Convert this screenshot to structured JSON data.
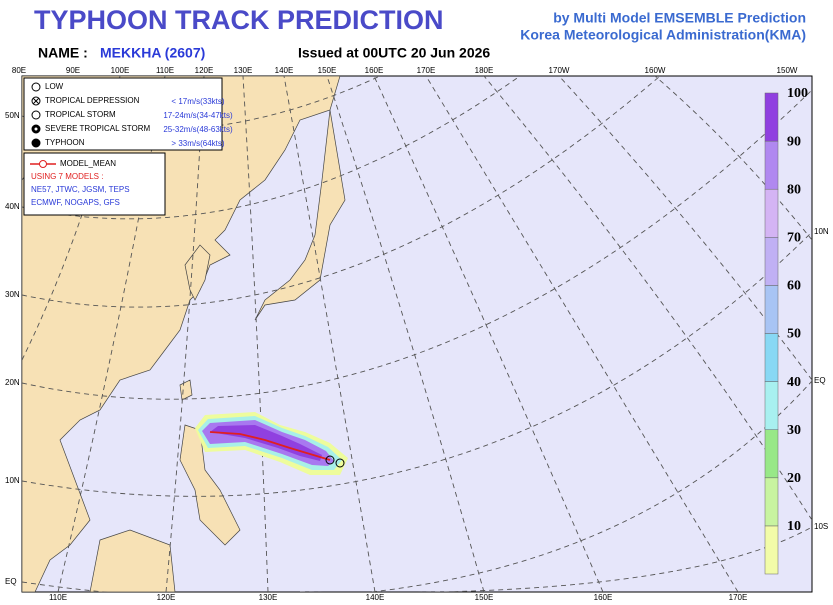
{
  "header": {
    "title": "TYPHOON  TRACK  PREDICTION",
    "subtitle": "by Multi Model EMSEMBLE Prediction",
    "agency": "Korea Meteorological Administration(KMA)",
    "name_label": "NAME :",
    "name": "MEKKHA (2607)",
    "issued": "Issued at  00UTC 20 Jun 2026"
  },
  "map": {
    "top_labels": [
      "80E",
      "90E",
      "100E",
      "110E",
      "120E",
      "130E",
      "140E",
      "150E",
      "160E",
      "170E",
      "180E",
      "170W",
      "160W",
      "150W"
    ],
    "bottom_labels": [
      "110E",
      "120E",
      "130E",
      "140E",
      "150E",
      "160E",
      "170E"
    ],
    "left_labels": [
      "50N",
      "40N",
      "30N",
      "20N",
      "10N",
      "EQ"
    ],
    "right_labels": [
      "10N",
      "EQ",
      "10S"
    ]
  },
  "legend": {
    "items": [
      {
        "label": "LOW"
      },
      {
        "label": "TROPICAL DEPRESSION",
        "speed": "< 17m/s(33kts)"
      },
      {
        "label": "TROPICAL STORM",
        "speed": "17-24m/s(34-47kts)"
      },
      {
        "label": "SEVERE TROPICAL STORM",
        "speed": "25-32m/s(48-63kts)"
      },
      {
        "label": "TYPHOON",
        "speed": "> 33m/s(64kts)"
      }
    ],
    "mean_label": "MODEL_MEAN",
    "models_title": "USING 7 MODELS :",
    "models_1": "NE57, JTWC, JGSM, TEPS",
    "models_2": "ECMWF, NOGAPS, GFS"
  },
  "colorbar": {
    "levels": [
      10,
      20,
      30,
      40,
      50,
      60,
      70,
      80,
      90,
      100
    ],
    "colors": [
      "#f2fca8",
      "#c8f4a0",
      "#98e888",
      "#a8f0f0",
      "#88d8f4",
      "#a8c4f4",
      "#c0b0f4",
      "#d4b4f4",
      "#b088f0",
      "#9040e0"
    ]
  }
}
